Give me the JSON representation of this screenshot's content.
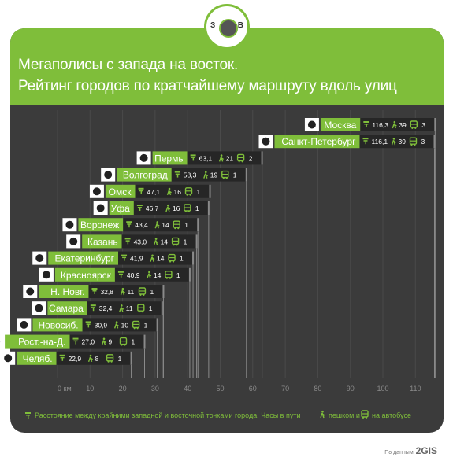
{
  "header": {
    "title_line1": "Мегаполисы с запада на восток.",
    "title_line2": "Рейтинг городов по кратчайшему маршруту вдоль улиц"
  },
  "compass": {
    "west": "З",
    "east": "В"
  },
  "legend": {
    "text_a": "Расстояние между крайними западной и восточной точками города. Часы в пути",
    "text_b": "пешком и",
    "text_c": "на автобусе"
  },
  "credit": {
    "prefix": "По данным",
    "brand": "2GIS"
  },
  "colors": {
    "accent": "#7fbe3a",
    "background": "#3b3b3b",
    "grid": "#8a8a8a"
  },
  "chart_data": {
    "type": "bar",
    "orientation": "horizontal",
    "x_unit": "км",
    "x_ticks": [
      "0 км",
      "10",
      "20",
      "30",
      "40",
      "50",
      "60",
      "70",
      "80",
      "90",
      "100",
      "110"
    ],
    "xlim": [
      0,
      116.3
    ],
    "cities": [
      {
        "name": "Москва",
        "distance": 116.3,
        "distance_label": "116,3",
        "walk_hours": 39,
        "bus_hours": 3,
        "icon": "kremlin-icon"
      },
      {
        "name": "Санкт-Петербург",
        "distance": 116.1,
        "distance_label": "116,1",
        "walk_hours": 39,
        "bus_hours": 3,
        "icon": "anchors-icon"
      },
      {
        "name": "Пермь",
        "distance": 63.1,
        "distance_label": "63,1",
        "walk_hours": 21,
        "bus_hours": 2,
        "icon": "bear-icon"
      },
      {
        "name": "Волгоград",
        "distance": 58.3,
        "distance_label": "58,3",
        "walk_hours": 19,
        "bus_hours": 1,
        "icon": "motherland-statue-icon"
      },
      {
        "name": "Омск",
        "distance": 47.1,
        "distance_label": "47,1",
        "walk_hours": 16,
        "bus_hours": 1,
        "icon": "fortress-gate-icon"
      },
      {
        "name": "Уфа",
        "distance": 46.7,
        "distance_label": "46,7",
        "walk_hours": 16,
        "bus_hours": 1,
        "icon": "marten-icon"
      },
      {
        "name": "Воронеж",
        "distance": 43.4,
        "distance_label": "43,4",
        "walk_hours": 14,
        "bus_hours": 1,
        "icon": "ship-icon"
      },
      {
        "name": "Казань",
        "distance": 43.0,
        "distance_label": "43,0",
        "walk_hours": 14,
        "bus_hours": 1,
        "icon": "dragon-icon"
      },
      {
        "name": "Екатеринбург",
        "distance": 41.9,
        "distance_label": "41,9",
        "walk_hours": 14,
        "bus_hours": 1,
        "icon": "church-icon"
      },
      {
        "name": "Красноярск",
        "distance": 40.9,
        "distance_label": "40,9",
        "walk_hours": 14,
        "bus_hours": 1,
        "icon": "lion-icon"
      },
      {
        "name": "Н. Новг.",
        "distance": 32.8,
        "distance_label": "32,8",
        "walk_hours": 11,
        "bus_hours": 1,
        "icon": "deer-icon"
      },
      {
        "name": "Самара",
        "distance": 32.4,
        "distance_label": "32,4",
        "walk_hours": 11,
        "bus_hours": 1,
        "icon": "goat-icon"
      },
      {
        "name": "Новосиб.",
        "distance": 30.9,
        "distance_label": "30,9",
        "walk_hours": 10,
        "bus_hours": 1,
        "icon": "sable-icon"
      },
      {
        "name": "Рост.-на-Д.",
        "distance": 27.0,
        "distance_label": "27,0",
        "walk_hours": 9,
        "bus_hours": 1,
        "icon": "castle-icon"
      },
      {
        "name": "Челяб.",
        "distance": 22.9,
        "distance_label": "22,9",
        "walk_hours": 8,
        "bus_hours": 1,
        "icon": "camel-icon"
      }
    ]
  }
}
